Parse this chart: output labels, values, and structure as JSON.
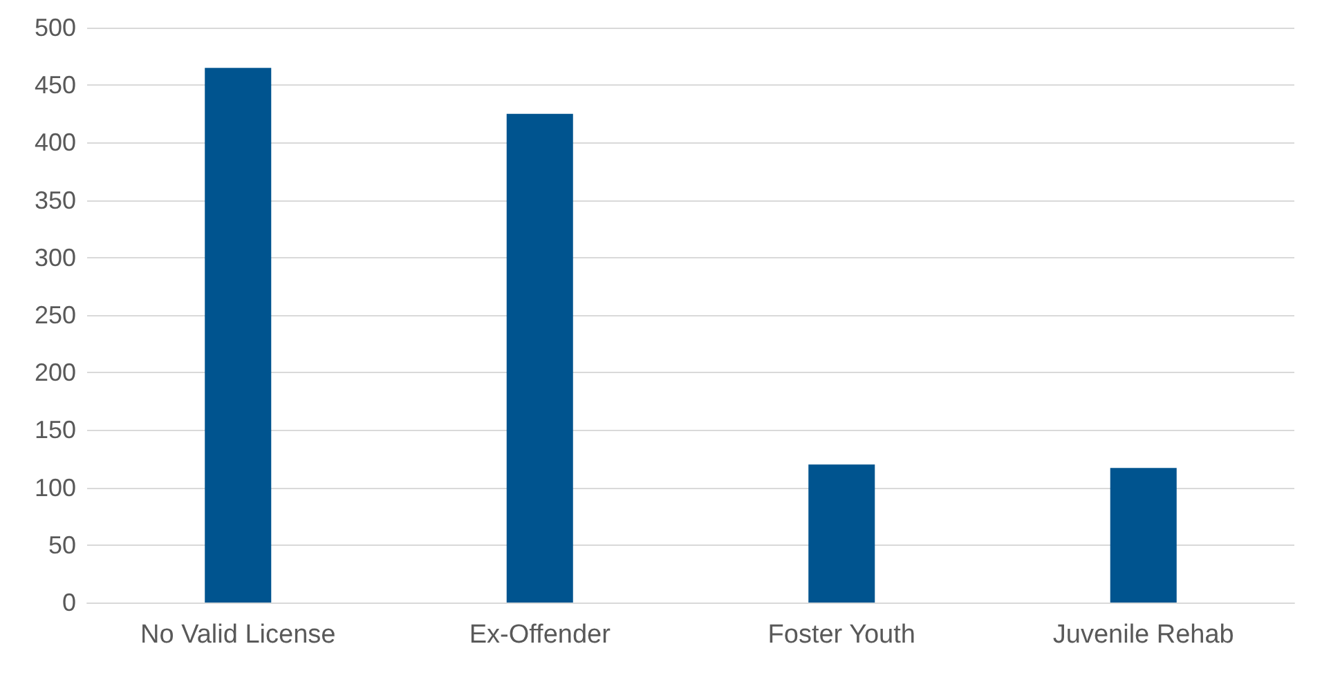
{
  "chart_data": {
    "type": "bar",
    "categories": [
      "No Valid License",
      "Ex-Offender",
      "Foster Youth",
      "Juvenile Rehab"
    ],
    "values": [
      465,
      425,
      120,
      117
    ],
    "color": "#00548f",
    "ylim": [
      0,
      500
    ],
    "yticks": [
      0,
      50,
      100,
      150,
      200,
      250,
      300,
      350,
      400,
      450,
      500
    ],
    "grid": "y"
  }
}
